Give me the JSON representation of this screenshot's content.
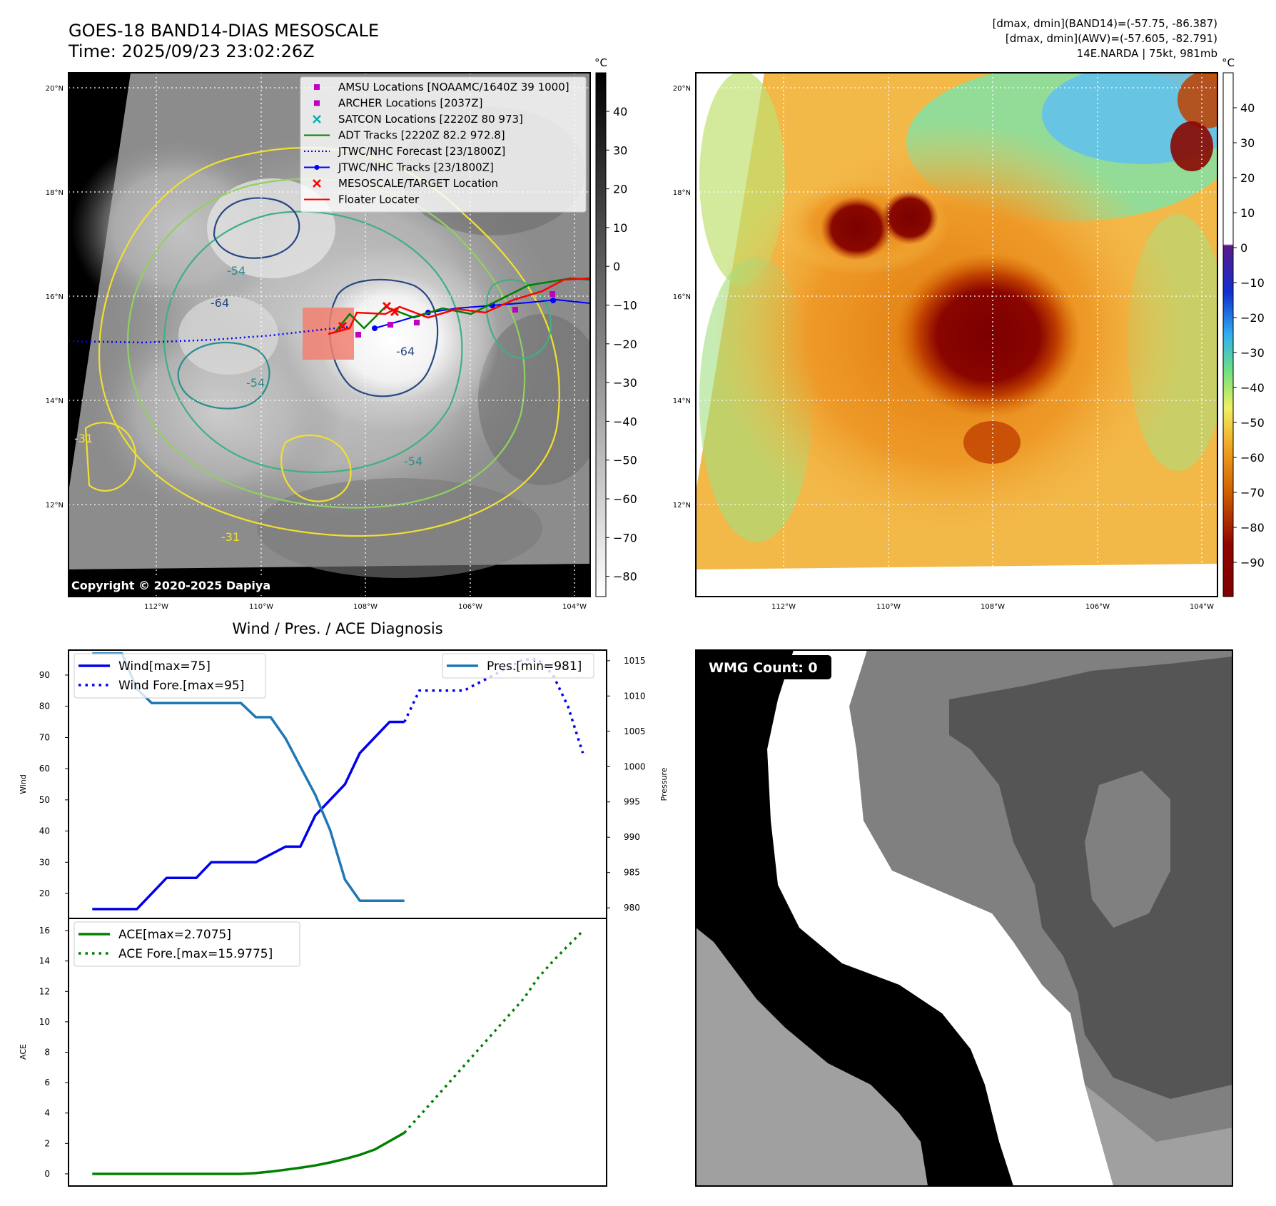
{
  "header": {
    "title_line1": "GOES-18 BAND14-DIAS MESOSCALE",
    "title_line2": "Time: 2025/09/23 23:02:26Z",
    "info_line1": "[dmax, dmin](BAND14)=(-57.75, -86.387)",
    "info_line2": "[dmax, dmin](AWV)=(-57.605, -82.791)",
    "info_line3": "14E.NARDA | 75kt, 981mb"
  },
  "copyright": "Copyright © 2020-2025 Dapiya",
  "map_axes": {
    "lon_labels": [
      "112°W",
      "110°W",
      "108°W",
      "106°W",
      "104°W"
    ],
    "lat_labels": [
      "20°N",
      "18°N",
      "16°N",
      "14°N",
      "12°N"
    ]
  },
  "contour_labels": [
    "-54",
    "-64",
    "-54",
    "-31",
    "-31",
    "-54",
    "-64"
  ],
  "map_legend": [
    {
      "label": "AMSU Locations [NOAAMC/1640Z 39 1000]",
      "marker": "square",
      "color": "#c000c0"
    },
    {
      "label": "ARCHER Locations [2037Z]",
      "marker": "square",
      "color": "#c000c0"
    },
    {
      "label": "SATCON Locations [2220Z 80 973]",
      "marker": "x",
      "color": "#00b0b0"
    },
    {
      "label": "ADT Tracks [2220Z 82.2 972.8]",
      "marker": "line",
      "color": "#008000"
    },
    {
      "label": "JTWC/NHC Forecast [23/1800Z]",
      "marker": "dotted",
      "color": "#0000ff"
    },
    {
      "label": "JTWC/NHC Tracks [23/1800Z]",
      "marker": "line-dot",
      "color": "#0000ff"
    },
    {
      "label": "MESOSCALE/TARGET Location",
      "marker": "x",
      "color": "#ff0000"
    },
    {
      "label": "Floater Locater",
      "marker": "line",
      "color": "#ff0000"
    }
  ],
  "colorbar_ir": {
    "unit": "°C",
    "ticks": [
      "40",
      "30",
      "20",
      "10",
      "0",
      "−10",
      "−20",
      "−30",
      "−40",
      "−50",
      "−60",
      "−70",
      "−80"
    ]
  },
  "colorbar_awv": {
    "unit": "°C",
    "ticks": [
      "40",
      "30",
      "20",
      "10",
      "0",
      "−10",
      "−20",
      "−30",
      "−40",
      "−50",
      "−60",
      "−70",
      "−80",
      "−90"
    ]
  },
  "diag_title": "Wind / Pres. / ACE Diagnosis",
  "wmg_label": "WMG Count: 0",
  "colors": {
    "wind": "#0000ee",
    "pressure": "#1f77b4",
    "ace": "#008000",
    "floater": "#f08070"
  },
  "chart_data": [
    {
      "type": "line",
      "ylabel": "Wind",
      "ylim": [
        12,
        98
      ],
      "yticks": [
        20,
        30,
        40,
        50,
        60,
        70,
        80,
        90
      ],
      "xlim": [
        -1.6,
        34.6
      ],
      "series": [
        {
          "name": "Wind[max=75]",
          "style": "solid",
          "x": [
            0,
            3,
            5,
            7,
            8,
            10,
            11,
            13,
            14,
            15,
            17,
            18,
            20,
            21
          ],
          "y": [
            15,
            15,
            25,
            25,
            30,
            30,
            30,
            35,
            35,
            45,
            55,
            65,
            75,
            75
          ]
        },
        {
          "name": "Wind Fore.[max=95]",
          "style": "dotted",
          "x": [
            21,
            22,
            24,
            25,
            27,
            29,
            30,
            31,
            32,
            33
          ],
          "y": [
            75,
            85,
            85,
            85,
            90,
            95,
            95,
            90,
            80,
            65
          ]
        }
      ],
      "legend_position": "upper left"
    },
    {
      "type": "line",
      "ylabel": "Pressure",
      "ylim": [
        978.5,
        1016.5
      ],
      "yticks": [
        980,
        985,
        990,
        995,
        1000,
        1005,
        1010,
        1015
      ],
      "xlim": [
        -1.6,
        34.6
      ],
      "series": [
        {
          "name": "Pres.[min=981]",
          "style": "solid",
          "x": [
            0,
            1,
            2,
            3,
            4,
            5,
            6,
            7,
            8,
            9,
            10,
            11,
            12,
            13,
            14,
            15,
            16,
            17,
            18,
            19,
            20,
            21
          ],
          "y": [
            1016,
            1016,
            1016,
            1011,
            1009,
            1009,
            1009,
            1009,
            1009,
            1009,
            1009,
            1007,
            1007,
            1004,
            1000,
            996,
            991,
            984,
            981,
            981,
            981,
            981
          ]
        }
      ],
      "legend_position": "upper right"
    },
    {
      "type": "line",
      "ylabel": "ACE",
      "ylim": [
        -0.8,
        16.8
      ],
      "yticks": [
        0,
        2,
        4,
        6,
        8,
        10,
        12,
        14,
        16
      ],
      "xlim": [
        -1.6,
        34.6
      ],
      "series": [
        {
          "name": "ACE[max=2.7075]",
          "style": "solid",
          "x": [
            0,
            1,
            2,
            3,
            4,
            5,
            6,
            7,
            8,
            9,
            10,
            11,
            12,
            13,
            14,
            15,
            16,
            17,
            18,
            19,
            20,
            21
          ],
          "y": [
            0,
            0,
            0,
            0,
            0,
            0,
            0,
            0,
            0,
            0,
            0,
            0.05,
            0.15,
            0.27,
            0.4,
            0.55,
            0.75,
            0.98,
            1.25,
            1.6,
            2.15,
            2.7075
          ]
        },
        {
          "name": "ACE Fore.[max=15.9775]",
          "style": "dotted",
          "x": [
            21,
            22,
            23,
            24,
            25,
            26,
            27,
            28,
            29,
            30,
            31,
            32,
            33
          ],
          "y": [
            2.7075,
            3.8,
            4.9,
            6.0,
            7.1,
            8.2,
            9.3,
            10.4,
            11.5,
            12.9,
            14.0,
            15.0,
            15.9775
          ]
        }
      ],
      "legend_position": "upper left"
    }
  ]
}
